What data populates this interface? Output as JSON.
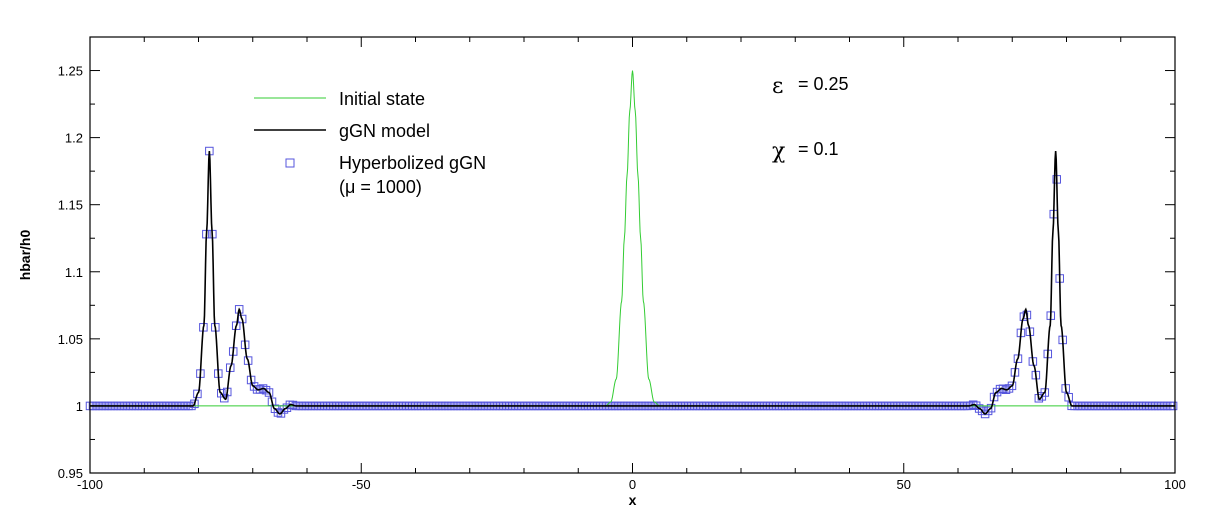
{
  "chart_data": {
    "type": "line",
    "xlabel": "x",
    "ylabel": "hbar/h0",
    "xlim": [
      -100,
      100
    ],
    "ylim": [
      0.95,
      1.275
    ],
    "xticks": [
      -100,
      -50,
      0,
      50,
      100
    ],
    "xtick_labels": [
      "-100",
      "-50",
      "0",
      "50",
      "100"
    ],
    "yticks": [
      0.95,
      1.0,
      1.05,
      1.1,
      1.15,
      1.2,
      1.25
    ],
    "ytick_labels": [
      "0.95",
      "1",
      "1.05",
      "1.1",
      "1.15",
      "1.2",
      "1.25"
    ],
    "grid": false,
    "legend_position": "top-left",
    "series": [
      {
        "name": "Initial state",
        "color": "#33cc33",
        "style": "line",
        "points": [
          [
            -100,
            1.0
          ],
          [
            -5,
            1.0
          ],
          [
            -4,
            1.003
          ],
          [
            -3,
            1.02
          ],
          [
            -2,
            1.078
          ],
          [
            -1.5,
            1.125
          ],
          [
            -1,
            1.172
          ],
          [
            -0.5,
            1.22
          ],
          [
            0,
            1.25
          ],
          [
            0.5,
            1.22
          ],
          [
            1,
            1.172
          ],
          [
            1.5,
            1.125
          ],
          [
            2,
            1.078
          ],
          [
            3,
            1.02
          ],
          [
            4,
            1.003
          ],
          [
            5,
            1.0
          ],
          [
            100,
            1.0
          ]
        ]
      },
      {
        "name": "gGN model",
        "color": "#000000",
        "style": "line",
        "points": [
          [
            -100,
            1.0
          ],
          [
            -81,
            1.0
          ],
          [
            -80,
            1.01
          ],
          [
            -79,
            1.06
          ],
          [
            -78.5,
            1.13
          ],
          [
            -78,
            1.19
          ],
          [
            -77.5,
            1.13
          ],
          [
            -77,
            1.06
          ],
          [
            -76,
            1.01
          ],
          [
            -75,
            1.005
          ],
          [
            -74,
            1.03
          ],
          [
            -73,
            1.06
          ],
          [
            -72.5,
            1.072
          ],
          [
            -72,
            1.065
          ],
          [
            -71,
            1.035
          ],
          [
            -70,
            1.015
          ],
          [
            -69,
            1.012
          ],
          [
            -68,
            1.013
          ],
          [
            -67,
            1.01
          ],
          [
            -66,
            0.998
          ],
          [
            -65,
            0.994
          ],
          [
            -64,
            0.998
          ],
          [
            -63,
            1.001
          ],
          [
            -62,
            1.0
          ],
          [
            -55,
            1.0
          ],
          [
            55,
            1.0
          ],
          [
            62,
            1.0
          ],
          [
            63,
            1.001
          ],
          [
            64,
            0.998
          ],
          [
            65,
            0.994
          ],
          [
            66,
            0.998
          ],
          [
            67,
            1.01
          ],
          [
            68,
            1.013
          ],
          [
            69,
            1.012
          ],
          [
            70,
            1.015
          ],
          [
            71,
            1.035
          ],
          [
            72,
            1.065
          ],
          [
            72.5,
            1.072
          ],
          [
            73,
            1.06
          ],
          [
            74,
            1.03
          ],
          [
            75,
            1.005
          ],
          [
            76,
            1.01
          ],
          [
            77,
            1.06
          ],
          [
            77.5,
            1.13
          ],
          [
            78,
            1.19
          ],
          [
            78.5,
            1.13
          ],
          [
            79,
            1.06
          ],
          [
            80,
            1.01
          ],
          [
            81,
            1.0
          ],
          [
            100,
            1.0
          ]
        ]
      },
      {
        "name": "Hyperbolized gGN",
        "name_line2": "(μ = 1000)",
        "color": "#5555dd",
        "style": "markers",
        "marker": "square"
      }
    ],
    "annotations": [
      {
        "symbol": "ε",
        "text": "= 0.25"
      },
      {
        "symbol": "χ",
        "text": "= 0.1"
      }
    ]
  }
}
